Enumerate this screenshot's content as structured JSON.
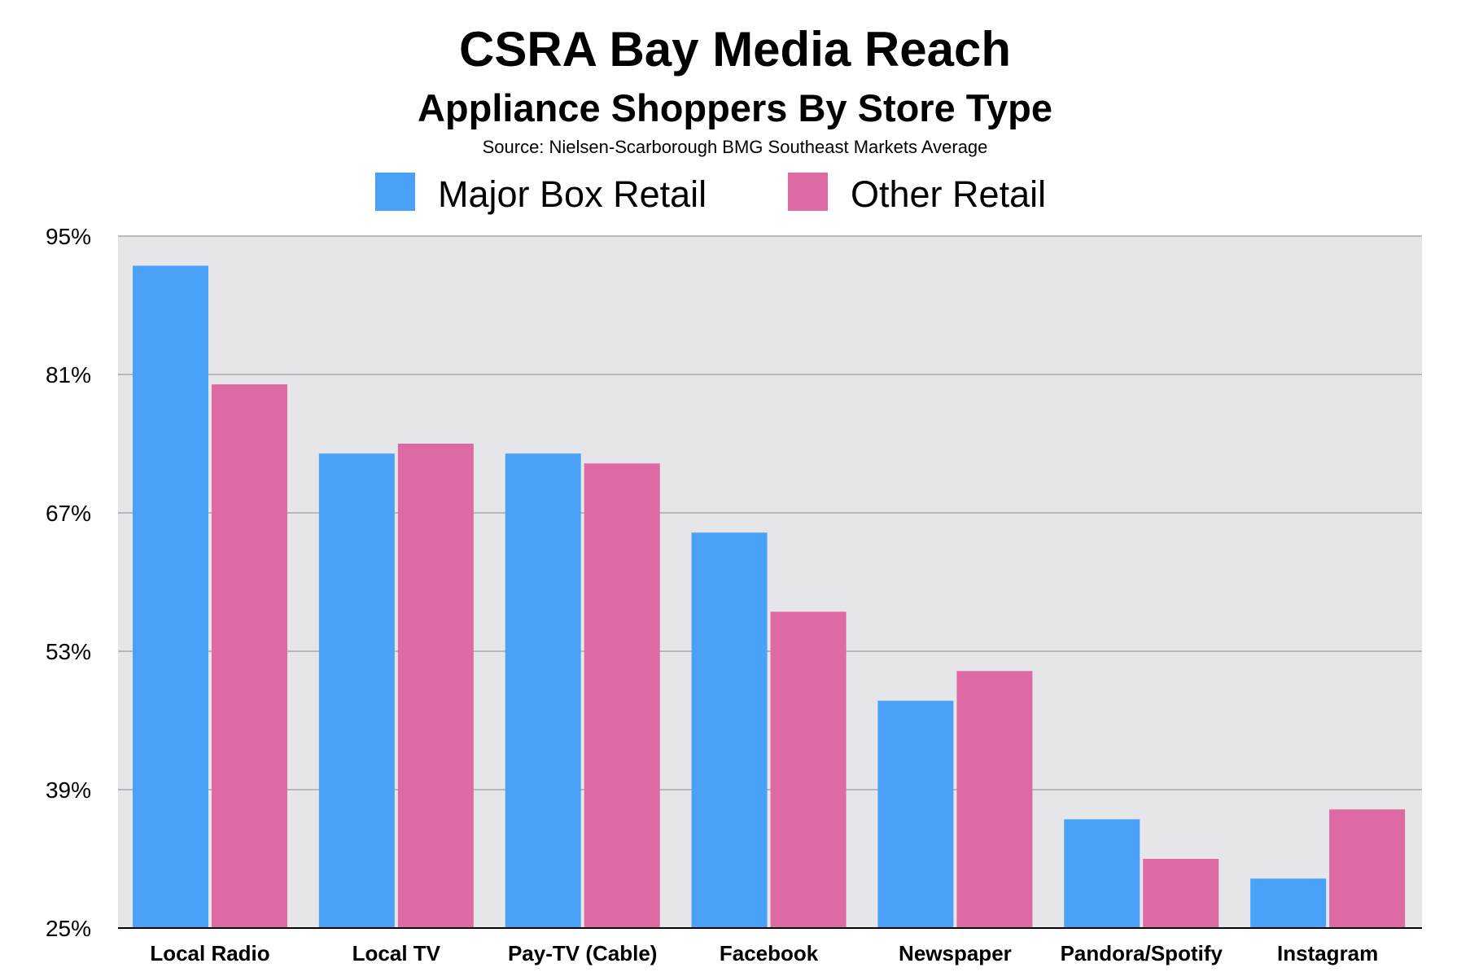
{
  "chart_data": {
    "type": "bar",
    "title": "CSRA Bay Media Reach",
    "subtitle": "Appliance Shoppers By Store Type",
    "source": "Source: Nielsen-Scarborough BMG Southeast Markets Average",
    "categories": [
      "Local Radio",
      "Local TV",
      "Pay-TV (Cable)",
      "Facebook",
      "Newspaper",
      "Pandora/Spotify",
      "Instagram"
    ],
    "series": [
      {
        "name": "Major Box Retail",
        "color": "#4aa2f8",
        "values": [
          92,
          73,
          73,
          65,
          48,
          36,
          30
        ]
      },
      {
        "name": "Other Retail",
        "color": "#de6aa4",
        "values": [
          80,
          74,
          72,
          57,
          51,
          32,
          37
        ]
      }
    ],
    "ylim": [
      25,
      95
    ],
    "yticks": [
      "95%",
      "81%",
      "67%",
      "53%",
      "39%",
      "25%"
    ],
    "ytick_values": [
      95,
      81,
      67,
      53,
      39,
      25
    ],
    "grid": true,
    "legend_position": "top",
    "plot_background": "#e5e5ea",
    "grid_color": "#a9a9ad"
  }
}
